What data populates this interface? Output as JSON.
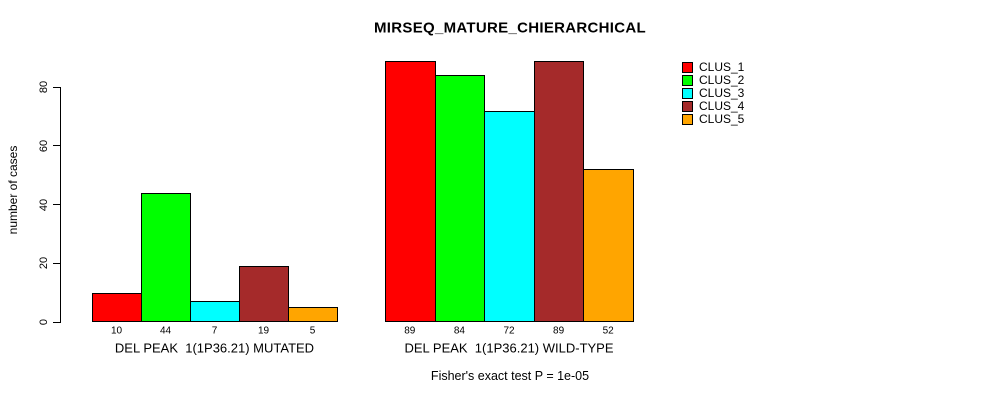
{
  "chart_data": {
    "type": "bar",
    "title": "MIRSEQ_MATURE_CHIERARCHICAL",
    "ylabel": "number of cases",
    "xlabel": "",
    "ylim": [
      0,
      80
    ],
    "yticks": [
      0,
      20,
      40,
      60,
      80
    ],
    "grid": false,
    "legend_position": "right",
    "bar_value_labels": true,
    "categories": [
      "DEL PEAK  1(1P36.21) MUTATED",
      "DEL PEAK  1(1P36.21) WILD-TYPE"
    ],
    "series": [
      {
        "name": "CLUS_1",
        "color": "#ff0000",
        "values": [
          10,
          89
        ]
      },
      {
        "name": "CLUS_2",
        "color": "#00ff00",
        "values": [
          44,
          84
        ]
      },
      {
        "name": "CLUS_3",
        "color": "#00ffff",
        "values": [
          7,
          72
        ]
      },
      {
        "name": "CLUS_4",
        "color": "#a52a2a",
        "values": [
          19,
          89
        ]
      },
      {
        "name": "CLUS_5",
        "color": "#ffa500",
        "values": [
          5,
          52
        ]
      }
    ],
    "annotation": "Fisher's exact test P = 1e-05"
  },
  "colors": {
    "axis": "#000000",
    "background": "#ffffff",
    "text": "#000000"
  }
}
